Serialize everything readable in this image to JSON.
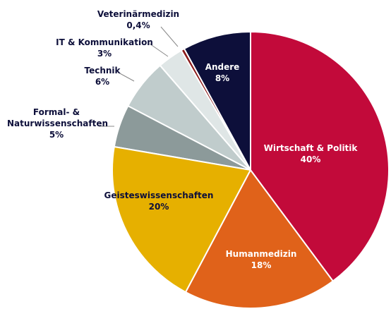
{
  "chart_data": {
    "type": "pie",
    "categories": [
      "Wirtschaft & Politik",
      "Humanmedizin",
      "Geisteswissenschaften",
      "Formal- & Naturwissenschaften",
      "Technik",
      "IT & Kommunikation",
      "Veterinärmedizin",
      "Andere"
    ],
    "values": [
      40,
      18,
      20,
      5,
      6,
      3,
      0.4,
      8
    ],
    "value_labels": [
      "40%",
      "18%",
      "20%",
      "5%",
      "6%",
      "3%",
      "0,4%",
      "8%"
    ],
    "colors": [
      "#c20a3a",
      "#e0621a",
      "#e6b000",
      "#8c9a9a",
      "#c0cccc",
      "#dfe6e6",
      "#8b1a1a",
      "#0d0f3a"
    ]
  }
}
